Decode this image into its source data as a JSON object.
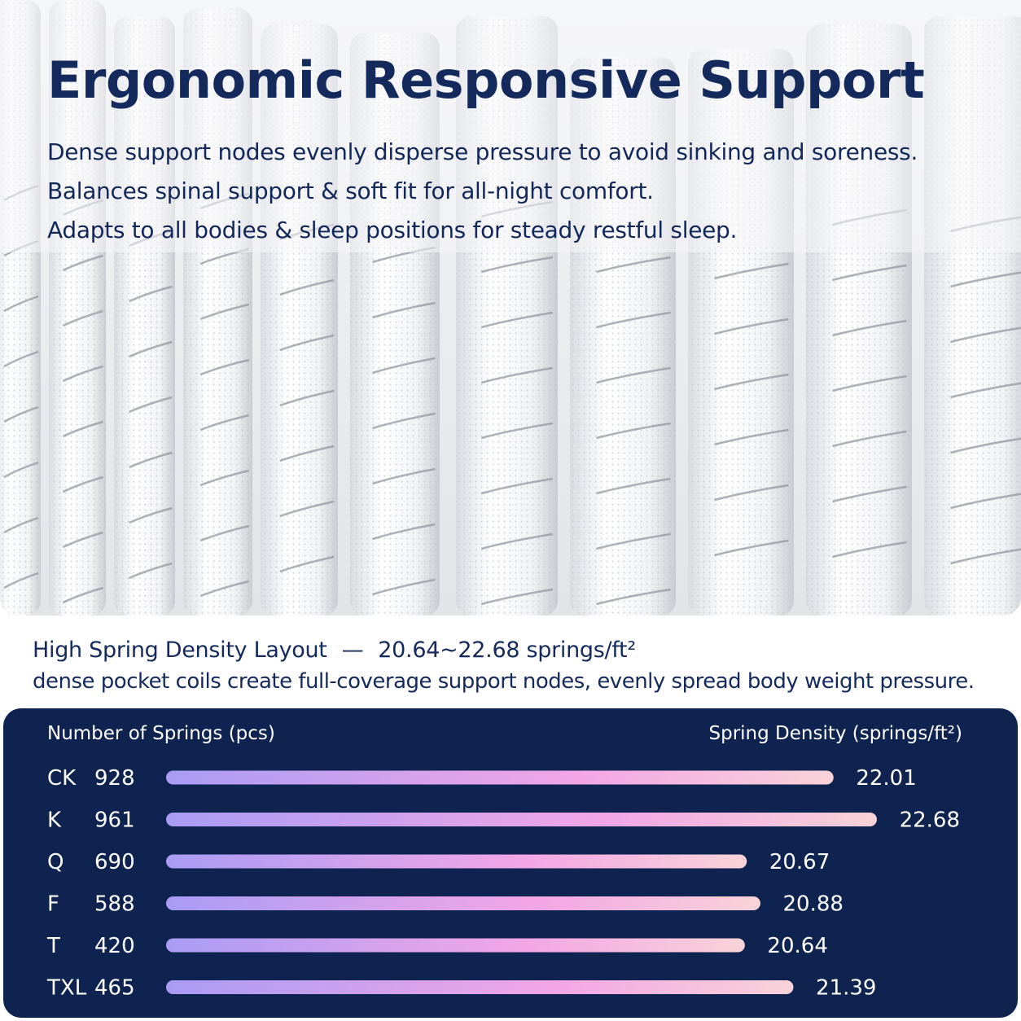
{
  "hero": {
    "title": "Ergonomic Responsive Support",
    "lines": [
      "Dense support nodes evenly disperse pressure to avoid sinking and soreness.",
      "Balances spinal support & soft fit for all-night comfort.",
      "Adapts to all bodies & sleep positions for steady restful sleep."
    ]
  },
  "subtitle": {
    "heading": "High Spring Density Layout",
    "dash": "—",
    "range": "20.64~22.68 springs/ft²",
    "description": "dense pocket coils create full-coverage support nodes, evenly spread body weight pressure."
  },
  "colors": {
    "title": "#142a5c",
    "panel": "#0f2350",
    "bar_start": "#a99cf5",
    "bar_mid": "#f3a6e6",
    "bar_end": "#f8d3d8"
  },
  "chart_data": {
    "type": "bar",
    "orientation": "horizontal",
    "left_header": "Number of Springs (pcs)",
    "right_header": "Spring Density (springs/ft²)",
    "categories": [
      "CK",
      "K",
      "Q",
      "F",
      "T",
      "TXL"
    ],
    "springs": [
      928,
      961,
      690,
      588,
      420,
      465
    ],
    "series": [
      {
        "values": [
          22.01,
          22.68,
          20.67,
          20.88,
          20.64,
          21.39
        ]
      }
    ],
    "value_labels": [
      "22.01",
      "22.68",
      "20.67",
      "20.88",
      "20.64",
      "21.39"
    ]
  }
}
